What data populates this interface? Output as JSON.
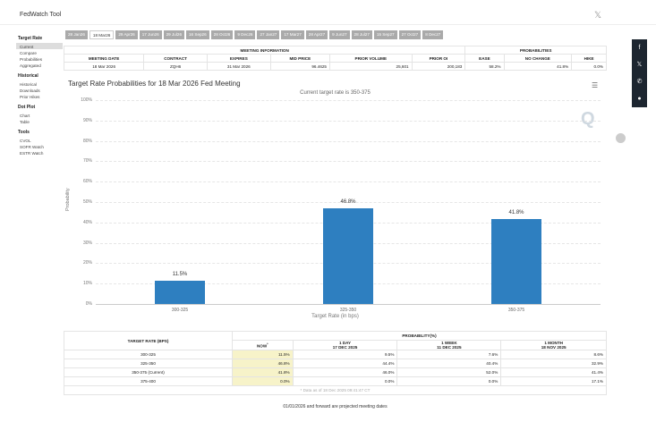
{
  "app": {
    "title": "FedWatch Tool",
    "x_icon": "𝕏"
  },
  "sidebar": {
    "sections": [
      {
        "heading": "Target Rate",
        "items": [
          "Current",
          "Compare",
          "Probabilities",
          "Aggregated"
        ]
      },
      {
        "heading": "Historical",
        "items": [
          "Historical",
          "Downloads",
          "Prior Hikes"
        ]
      },
      {
        "heading": "Dot Plot",
        "items": [
          "Chart",
          "Table"
        ]
      },
      {
        "heading": "Tools",
        "items": [
          "CVOL",
          "SOFR Watch",
          "ESTR Watch"
        ]
      }
    ],
    "active_item": "Current"
  },
  "date_tabs": {
    "items": [
      "28 Jan26",
      "18 Mar26",
      "29 Apr26",
      "17 Jun26",
      "29 Jul26",
      "16 Sep26",
      "28 Oct26",
      "9 Dec26",
      "27 Jan27",
      "17 Mar27",
      "28 Apr27",
      "9 Jun27",
      "28 Jul27",
      "15 Sep27",
      "27 Oct27",
      "8 Dec27"
    ],
    "active": "18 Mar26"
  },
  "meeting": {
    "header_left": "MEETING INFORMATION",
    "header_right": "PROBABILITIES",
    "columns": [
      "MEETING DATE",
      "CONTRACT",
      "EXPIRES",
      "MID PRICE",
      "PRIOR VOLUME",
      "PRIOR OI",
      "EASE",
      "NO CHANGE",
      "HIKE"
    ],
    "row": [
      "18 Mar 2026",
      "ZQH6",
      "31 Mar 2026",
      "96.4625",
      "25,601",
      "200,183",
      "58.2%",
      "41.8%",
      "0.0%"
    ]
  },
  "chart_data": {
    "type": "bar",
    "title": "Target Rate Probabilities for 18 Mar 2026 Fed Meeting",
    "subtitle": "Current target rate is 350-375",
    "categories": [
      "300-325",
      "325-350",
      "350-375"
    ],
    "values": [
      11.5,
      46.8,
      41.8
    ],
    "data_labels": [
      "11.5%",
      "46.8%",
      "41.8%"
    ],
    "xlabel": "Target Rate (in bps)",
    "ylabel": "Probability",
    "ylim": [
      0,
      100
    ],
    "yticks": [
      "0%",
      "10%",
      "20%",
      "30%",
      "40%",
      "50%",
      "60%",
      "70%",
      "80%",
      "90%",
      "100%"
    ],
    "bar_color": "#2e7fc0",
    "grid": true
  },
  "prob_table": {
    "col_rate": "TARGET RATE (BPS)",
    "col_prob": "PROBABILITY(%)",
    "subheaders": [
      {
        "line1": "NOW",
        "line2": ""
      },
      {
        "line1": "1 DAY",
        "line2": "17 DEC 2025"
      },
      {
        "line1": "1 WEEK",
        "line2": "11 DEC 2025"
      },
      {
        "line1": "1 MONTH",
        "line2": "18 NOV 2025"
      }
    ],
    "now_marker": "*",
    "rows": [
      {
        "rate": "300-325",
        "now": "11.5%",
        "day": "9.5%",
        "week": "7.6%",
        "month": "8.6%"
      },
      {
        "rate": "325-350",
        "now": "46.8%",
        "day": "44.4%",
        "week": "40.4%",
        "month": "32.9%"
      },
      {
        "rate": "350-375 (Current)",
        "now": "41.8%",
        "day": "46.0%",
        "week": "52.0%",
        "month": "41.4%"
      },
      {
        "rate": "375-400",
        "now": "0.0%",
        "day": "0.0%",
        "week": "0.0%",
        "month": "17.1%"
      }
    ],
    "data_as_of": "* Data as of 18 Dec 2025 09:41:47 CT"
  },
  "footnote": "01/01/2026 and forward are projected meeting dates",
  "social": [
    "f",
    "𝕏",
    "✆",
    "●"
  ]
}
